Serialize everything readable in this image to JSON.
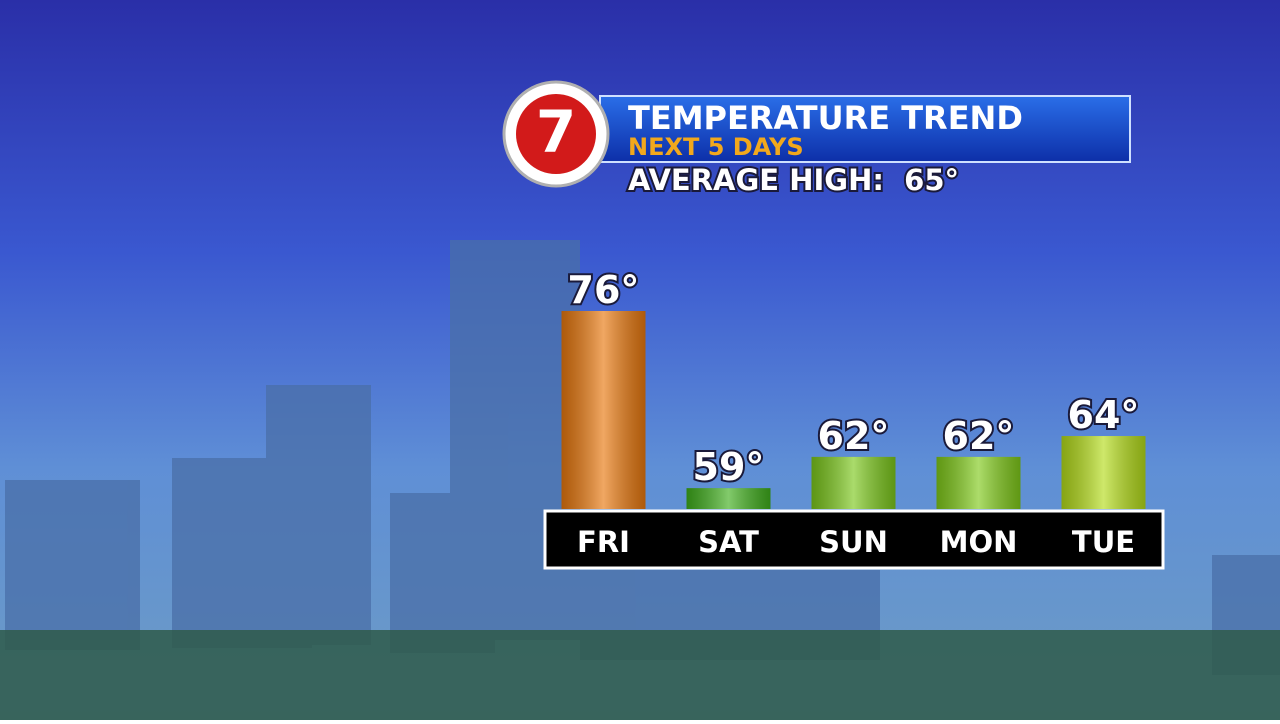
{
  "logo": "7",
  "chart_data": {
    "type": "bar",
    "title": "TEMPERATURE TREND",
    "subtitle": "NEXT 5 DAYS",
    "annotation": "AVERAGE HIGH:  65°",
    "categories": [
      "FRI",
      "SAT",
      "SUN",
      "MON",
      "TUE"
    ],
    "values": [
      76,
      59,
      62,
      62,
      64
    ],
    "value_labels": [
      "76°",
      "59°",
      "62°",
      "62°",
      "64°"
    ],
    "colors": [
      "#e8780e",
      "#3fae1c",
      "#7cc81c",
      "#80ca1a",
      "#b4dc1a"
    ],
    "ylim": [
      57,
      76
    ]
  }
}
